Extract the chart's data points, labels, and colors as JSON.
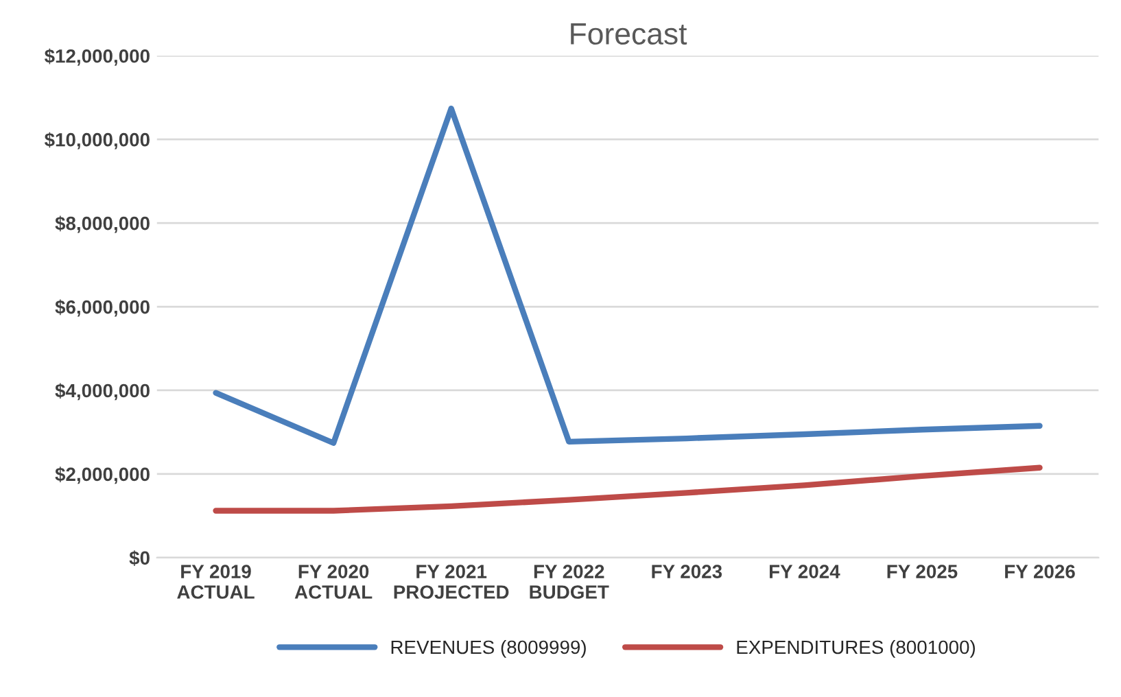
{
  "chart_data": {
    "type": "line",
    "title": "Forecast",
    "categories": [
      "FY 2019\nACTUAL",
      "FY 2020\nACTUAL",
      "FY 2021\nPROJECTED",
      "FY 2022\nBUDGET",
      "FY 2023",
      "FY 2024",
      "FY 2025",
      "FY 2026"
    ],
    "series": [
      {
        "name": "REVENUES (8009999)",
        "color": "#4a7ebb",
        "values": [
          3940000,
          2740000,
          10740000,
          2770000,
          2850000,
          2950000,
          3060000,
          3150000
        ]
      },
      {
        "name": "EXPENDITURES (8001000)",
        "color": "#be4b48",
        "values": [
          1120000,
          1120000,
          1230000,
          1380000,
          1550000,
          1730000,
          1950000,
          2150000
        ]
      }
    ],
    "ylim": [
      0,
      12000000
    ],
    "yticks": [
      {
        "value": 0,
        "label": "$0"
      },
      {
        "value": 2000000,
        "label": "$2,000,000"
      },
      {
        "value": 4000000,
        "label": "$4,000,000"
      },
      {
        "value": 6000000,
        "label": "$6,000,000"
      },
      {
        "value": 8000000,
        "label": "$8,000,000"
      },
      {
        "value": 10000000,
        "label": "$10,000,000"
      },
      {
        "value": 12000000,
        "label": "$12,000,000"
      }
    ],
    "grid": "y",
    "legend": "bottom",
    "marker": "none",
    "line_style": "solid"
  }
}
